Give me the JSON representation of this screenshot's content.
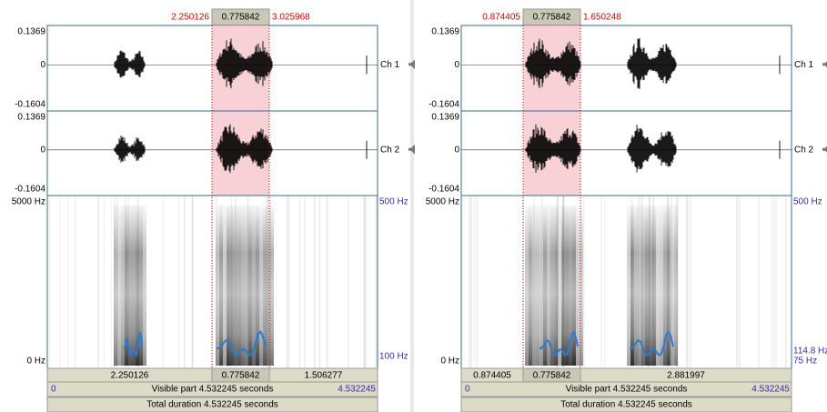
{
  "panels": [
    {
      "selection_start": "2.250126",
      "selection_length": "0.775842",
      "selection_end": "3.025968",
      "channels": [
        {
          "max": "0.1369",
          "zero": "0",
          "min": "-0.1604",
          "label": "Ch 1"
        },
        {
          "max": "0.1369",
          "zero": "0",
          "min": "-0.1604",
          "label": "Ch 2"
        }
      ],
      "spectrogram": {
        "top": "5000 Hz",
        "bottom": "0 Hz"
      },
      "pitch_labels": [
        "500 Hz",
        "100 Hz"
      ],
      "durations": [
        "2.250126",
        "0.775842",
        "1.506277"
      ],
      "visible_start": "0",
      "visible_text": "Visible part 4.532245 seconds",
      "visible_end": "4.532245",
      "total": "Total duration 4.532245 seconds"
    },
    {
      "selection_start": "0.874405",
      "selection_length": "0.775842",
      "selection_end": "1.650248",
      "channels": [
        {
          "max": "0.1369",
          "zero": "0",
          "min": "-0.1604",
          "label": "Ch 1"
        },
        {
          "max": "0.1369",
          "zero": "0",
          "min": "-0.1604",
          "label": "Ch 2"
        }
      ],
      "spectrogram": {
        "top": "5000 Hz",
        "bottom": "0 Hz"
      },
      "pitch_labels": [
        "500 Hz",
        "114.8 Hz",
        "75 Hz"
      ],
      "durations": [
        "0.874405",
        "0.775842",
        "2.881997"
      ],
      "visible_start": "0",
      "visible_text": "Visible part 4.532245 seconds",
      "visible_end": "4.532245",
      "total": "Total duration 4.532245 seconds"
    }
  ]
}
